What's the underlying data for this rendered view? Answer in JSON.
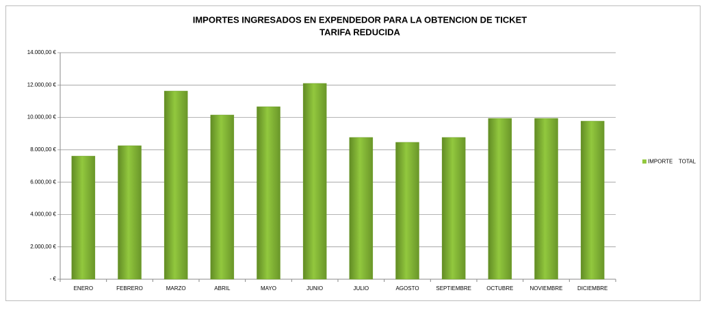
{
  "chart_data": {
    "type": "bar",
    "title": "IMPORTES INGRESADOS EN EXPENDEDOR PARA LA OBTENCION DE TICKET",
    "subtitle": "TARIFA REDUCIDA",
    "categories": [
      "ENERO",
      "FEBRERO",
      "MARZO",
      "ABRIL",
      "MAYO",
      "JUNIO",
      "JULIO",
      "AGOSTO",
      "SEPTIEMBRE",
      "OCTUBRE",
      "NOVIEMBRE",
      "DICIEMBRE"
    ],
    "series": [
      {
        "name": "IMPORTE    TOTAL",
        "color": "#92c83e",
        "values": [
          7610,
          8250,
          11630,
          10150,
          10660,
          12100,
          8760,
          8460,
          8760,
          9940,
          9940,
          9770
        ]
      }
    ],
    "ylim": [
      0,
      14000
    ],
    "yticks": [
      {
        "value": 0,
        "label": "-   €"
      },
      {
        "value": 2000,
        "label": "2.000,00 €"
      },
      {
        "value": 4000,
        "label": "4.000,00 €"
      },
      {
        "value": 6000,
        "label": "6.000,00 €"
      },
      {
        "value": 8000,
        "label": "8.000,00 €"
      },
      {
        "value": 10000,
        "label": "10.000,00 €"
      },
      {
        "value": 12000,
        "label": "12.000,00 €"
      },
      {
        "value": 14000,
        "label": "14.000,00 €"
      }
    ],
    "grid": true,
    "legend": "right"
  }
}
